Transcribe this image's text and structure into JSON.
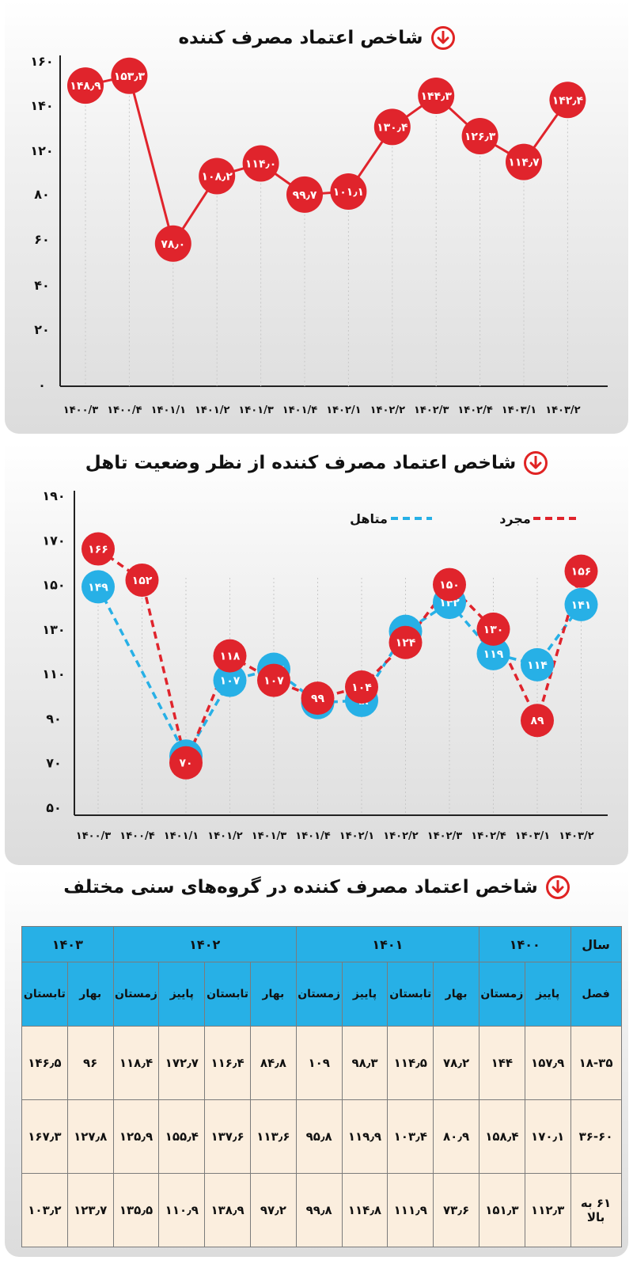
{
  "panel1": {
    "title": "شاخص اعتماد مصرف کننده",
    "chart_data": {
      "type": "line",
      "title": "شاخص اعتماد مصرف کننده",
      "categories": [
        "۱۴۰۰/۳",
        "۱۴۰۰/۴",
        "۱۴۰۱/۱",
        "۱۴۰۱/۲",
        "۱۴۰۱/۳",
        "۱۴۰۱/۴",
        "۱۴۰۲/۱",
        "۱۴۰۲/۲",
        "۱۴۰۲/۳",
        "۱۴۰۲/۴",
        "۱۴۰۳/۱",
        "۱۴۰۳/۲"
      ],
      "y_tick_labels": [
        "۱۶۰",
        "۱۴۰",
        "۱۲۰",
        "۸۰",
        "۶۰",
        "۴۰",
        "۲۰",
        "۰"
      ],
      "values": [
        148.9,
        153.3,
        78.0,
        108.2,
        114.0,
        99.7,
        101.1,
        130.4,
        144.3,
        126.3,
        114.7,
        142.4
      ],
      "data_labels": [
        "۱۴۸٫۹",
        "۱۵۳٫۳",
        "۷۸٫۰",
        "۱۰۸٫۲",
        "۱۱۴٫۰",
        "۹۹٫۷",
        "۱۰۱٫۱",
        "۱۳۰٫۴",
        "۱۴۴٫۳",
        "۱۲۶٫۳",
        "۱۱۴٫۷",
        "۱۴۲٫۴"
      ],
      "line_color": "#e0242c",
      "grid": false
    }
  },
  "panel2": {
    "title": "شاخص اعتماد مصرف کننده از نظر وضعیت تاهل",
    "chart_data": {
      "type": "line",
      "title": "شاخص اعتماد مصرف کننده از نظر وضعیت تاهل",
      "categories": [
        "۱۴۰۰/۳",
        "۱۴۰۰/۴",
        "۱۴۰۱/۱",
        "۱۴۰۱/۲",
        "۱۴۰۱/۳",
        "۱۴۰۱/۴",
        "۱۴۰۲/۱",
        "۱۴۰۲/۲",
        "۱۴۰۲/۳",
        "۱۴۰۲/۴",
        "۱۴۰۳/۱",
        "۱۴۰۳/۲"
      ],
      "y_tick_labels": [
        "۱۹۰",
        "۱۷۰",
        "۱۵۰",
        "۱۳۰",
        "۱۱۰",
        "۹۰",
        "۷۰",
        "۵۰"
      ],
      "legend_position": "top",
      "series": [
        {
          "name": "متاهل",
          "color": "#27b0e6",
          "values": [
            149,
            null,
            73,
            107,
            112,
            97,
            98,
            129,
            142,
            119,
            114,
            141
          ],
          "labels": [
            "۱۴۹",
            "",
            "",
            "۱۰۷",
            "۱۱۲",
            "",
            "۹۸",
            "۱۲۹",
            "۱۴۲",
            "۱۱۹",
            "۱۱۴",
            "۱۴۱"
          ]
        },
        {
          "name": "مجرد",
          "color": "#e0242c",
          "values": [
            166,
            152,
            70,
            118,
            107,
            99,
            104,
            124,
            150,
            130,
            89,
            156
          ],
          "labels": [
            "۱۶۶",
            "۱۵۲",
            "۷۰",
            "۱۱۸",
            "۱۰۷",
            "۹۹",
            "۱۰۴",
            "۱۲۴",
            "۱۵۰",
            "۱۳۰",
            "۸۹",
            "۱۵۶"
          ]
        }
      ]
    }
  },
  "panel3": {
    "title": "شاخص اعتماد مصرف کننده در گروه‌های سنی مختلف",
    "chart_data": {
      "type": "table",
      "title": "شاخص اعتماد مصرف کننده در گروه‌های سنی مختلف",
      "year_header": "سال",
      "season_header": "فصل",
      "years": [
        {
          "label": "۱۴۰۰",
          "span": 2
        },
        {
          "label": "۱۴۰۱",
          "span": 4
        },
        {
          "label": "۱۴۰۲",
          "span": 4
        },
        {
          "label": "۱۴۰۳",
          "span": 2
        }
      ],
      "seasons": [
        "پاییز",
        "زمستان",
        "بهار",
        "تابستان",
        "پاییز",
        "زمستان",
        "بهار",
        "تابستان",
        "پاییز",
        "زمستان",
        "بهار",
        "تابستان"
      ],
      "rows": [
        {
          "age": "۱۸-۳۵",
          "values": [
            "۱۵۷٫۹",
            "۱۴۴",
            "۷۸٫۲",
            "۱۱۴٫۵",
            "۹۸٫۳",
            "۱۰۹",
            "۸۴٫۸",
            "۱۱۶٫۴",
            "۱۷۲٫۷",
            "۱۱۸٫۴",
            "۹۶",
            "۱۴۶٫۵"
          ]
        },
        {
          "age": "۳۶-۶۰",
          "values": [
            "۱۷۰٫۱",
            "۱۵۸٫۴",
            "۸۰٫۹",
            "۱۰۳٫۴",
            "۱۱۹٫۹",
            "۹۵٫۸",
            "۱۱۳٫۶",
            "۱۳۷٫۶",
            "۱۵۵٫۴",
            "۱۲۵٫۹",
            "۱۲۷٫۸",
            "۱۶۷٫۳"
          ]
        },
        {
          "age": "۶۱ به بالا",
          "values": [
            "۱۱۲٫۳",
            "۱۵۱٫۳",
            "۷۳٫۶",
            "۱۱۱٫۹",
            "۱۱۴٫۸",
            "۹۹٫۸",
            "۹۷٫۲",
            "۱۳۸٫۹",
            "۱۱۰٫۹",
            "۱۳۵٫۵",
            "۱۲۳٫۷",
            "۱۰۳٫۲"
          ]
        }
      ]
    }
  },
  "icons": {
    "section_icon": "down-arrow-circle-icon",
    "accent": "#e02323",
    "table_header": "#27b0e6",
    "table_cell": "#fbeede"
  }
}
